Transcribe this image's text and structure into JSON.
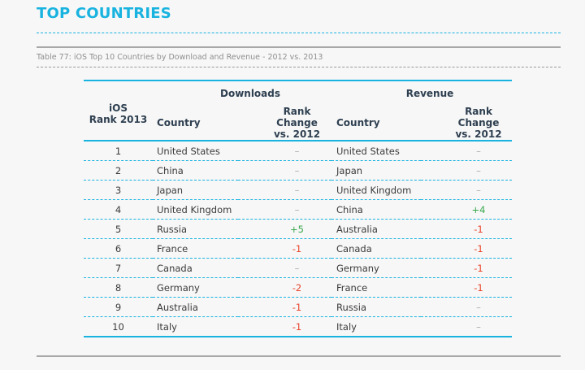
{
  "title": "TOP COUNTRIES",
  "caption": "Table 77: iOS Top 10 Countries by Download and Revenue - 2012 vs. 2013",
  "colors": {
    "accent": "#19b3e0",
    "header": "#2e3f50",
    "positive": "#3aa84f",
    "negative": "#e8442a",
    "neutral": "#aaaaaa"
  },
  "table": {
    "group_headers": {
      "downloads": "Downloads",
      "revenue": "Revenue"
    },
    "headers": {
      "rank": "iOS\nRank 2013",
      "rank_line1": "iOS",
      "rank_line2": "Rank 2013",
      "country": "Country",
      "change_line1": "Rank Change",
      "change_line2": "vs. 2012"
    },
    "rows": [
      {
        "rank": "1",
        "d_country": "United States",
        "d_change": "–",
        "r_country": "United States",
        "r_change": "–"
      },
      {
        "rank": "2",
        "d_country": "China",
        "d_change": "–",
        "r_country": "Japan",
        "r_change": "–"
      },
      {
        "rank": "3",
        "d_country": "Japan",
        "d_change": "–",
        "r_country": "United Kingdom",
        "r_change": "–"
      },
      {
        "rank": "4",
        "d_country": "United Kingdom",
        "d_change": "–",
        "r_country": "China",
        "r_change": "+4"
      },
      {
        "rank": "5",
        "d_country": "Russia",
        "d_change": "+5",
        "r_country": "Australia",
        "r_change": "-1"
      },
      {
        "rank": "6",
        "d_country": "France",
        "d_change": "-1",
        "r_country": "Canada",
        "r_change": "-1"
      },
      {
        "rank": "7",
        "d_country": "Canada",
        "d_change": "–",
        "r_country": "Germany",
        "r_change": "-1"
      },
      {
        "rank": "8",
        "d_country": "Germany",
        "d_change": "-2",
        "r_country": "France",
        "r_change": "-1"
      },
      {
        "rank": "9",
        "d_country": "Australia",
        "d_change": "-1",
        "r_country": "Russia",
        "r_change": "–"
      },
      {
        "rank": "10",
        "d_country": "Italy",
        "d_change": "-1",
        "r_country": "Italy",
        "r_change": "–"
      }
    ]
  }
}
